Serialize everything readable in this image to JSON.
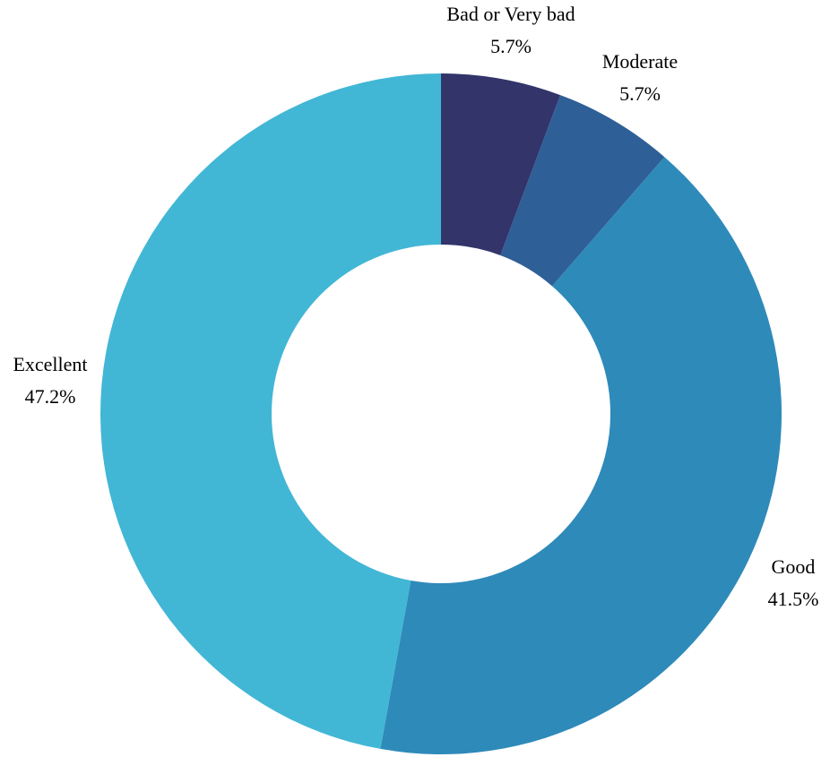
{
  "chart_data": {
    "type": "pie",
    "variant": "donut",
    "title": "",
    "slices": [
      {
        "label": "Bad or Very bad",
        "value": 5.7,
        "value_label": "5.7%",
        "color": "#32346a"
      },
      {
        "label": "Moderate",
        "value": 5.7,
        "value_label": "5.7%",
        "color": "#2e5f97"
      },
      {
        "label": "Good",
        "value": 41.5,
        "value_label": "41.5%",
        "color": "#2e8ab9"
      },
      {
        "label": "Excellent",
        "value": 47.2,
        "value_label": "47.2%",
        "color": "#42b6d5"
      }
    ],
    "start_angle": "12 o'clock",
    "direction": "clockwise",
    "legend": "none",
    "labels": "outside"
  }
}
